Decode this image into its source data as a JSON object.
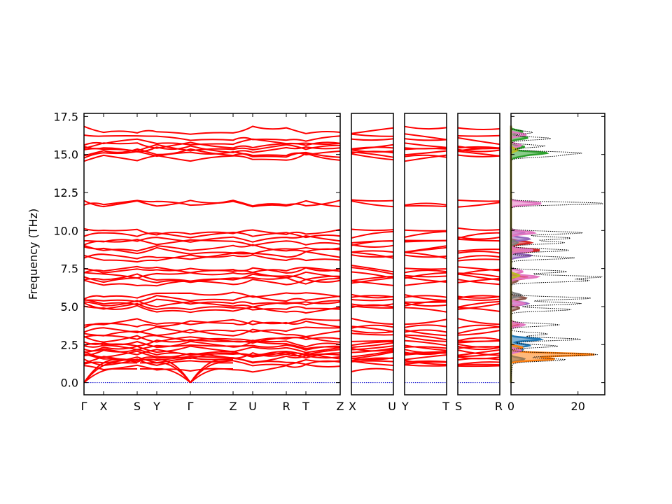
{
  "chart_data": {
    "type": "line",
    "title": "",
    "ylabel": "Frequency (THz)",
    "ylim": [
      -0.8,
      17.7
    ],
    "y_ticks": [
      "0.0",
      "2.5",
      "5.0",
      "7.5",
      "10.0",
      "12.5",
      "15.0",
      "17.5"
    ],
    "y_tick_values": [
      0.0,
      2.5,
      5.0,
      7.5,
      10.0,
      12.5,
      15.0,
      17.5
    ],
    "grid": false,
    "legend": "none",
    "colors": {
      "bands": "#ff0000",
      "zero_line": "#0000cc",
      "dos_total": "#000000"
    },
    "band_panels": [
      {
        "labels": [
          "Γ",
          "X",
          "S",
          "Y",
          "Γ",
          "Z",
          "U",
          "R",
          "T",
          "Z"
        ]
      },
      {
        "labels": [
          "X",
          "U"
        ]
      },
      {
        "labels": [
          "Y",
          "T"
        ]
      },
      {
        "labels": [
          "S",
          "R"
        ]
      }
    ],
    "band_levels_thz": [
      0.0,
      0.95,
      1.3,
      1.45,
      1.55,
      1.7,
      1.85,
      1.95,
      2.05,
      2.15,
      2.3,
      2.45,
      2.6,
      2.85,
      3.0,
      3.25,
      3.5,
      3.8,
      4.0,
      4.8,
      5.0,
      5.15,
      5.3,
      5.55,
      5.75,
      6.55,
      6.75,
      6.9,
      7.05,
      7.3,
      7.45,
      8.2,
      8.35,
      8.7,
      8.85,
      9.2,
      9.45,
      9.75,
      9.9,
      11.75,
      11.8,
      14.8,
      15.0,
      15.1,
      15.3,
      15.5,
      15.6,
      15.85,
      16.1,
      16.6
    ],
    "dos": {
      "xlabel_ticks": [
        "0",
        "20"
      ],
      "x_tick_values": [
        0,
        20
      ],
      "xlim": [
        0,
        28
      ],
      "total_peaks": [
        {
          "f": 1.5,
          "v": 16.5
        },
        {
          "f": 1.85,
          "v": 26.0
        },
        {
          "f": 2.4,
          "v": 14.0
        },
        {
          "f": 2.85,
          "v": 21.0
        },
        {
          "f": 3.2,
          "v": 11.0
        },
        {
          "f": 3.8,
          "v": 14.5
        },
        {
          "f": 4.8,
          "v": 18.0
        },
        {
          "f": 5.2,
          "v": 21.0
        },
        {
          "f": 5.55,
          "v": 24.0
        },
        {
          "f": 6.7,
          "v": 23.0
        },
        {
          "f": 6.95,
          "v": 27.0
        },
        {
          "f": 7.3,
          "v": 17.0
        },
        {
          "f": 8.2,
          "v": 19.0
        },
        {
          "f": 8.7,
          "v": 17.5
        },
        {
          "f": 9.2,
          "v": 16.0
        },
        {
          "f": 9.5,
          "v": 18.0
        },
        {
          "f": 9.85,
          "v": 21.5
        },
        {
          "f": 11.78,
          "v": 28.0
        },
        {
          "f": 14.9,
          "v": 12.0
        },
        {
          "f": 15.1,
          "v": 20.0
        },
        {
          "f": 15.55,
          "v": 10.0
        },
        {
          "f": 16.05,
          "v": 12.0
        },
        {
          "f": 16.45,
          "v": 6.5
        }
      ],
      "projections": [
        {
          "color": "#1f77b4",
          "peaks": [
            {
              "f": 2.85,
              "v": 9.0
            },
            {
              "f": 2.45,
              "v": 5.5
            },
            {
              "f": 2.15,
              "v": 3.5
            },
            {
              "f": 1.55,
              "v": 4.0
            }
          ]
        },
        {
          "color": "#ff7f0e",
          "peaks": [
            {
              "f": 1.85,
              "v": 25.0
            },
            {
              "f": 1.55,
              "v": 13.0
            },
            {
              "f": 2.3,
              "v": 3.5
            }
          ]
        },
        {
          "color": "#2ca02c",
          "peaks": [
            {
              "f": 15.1,
              "v": 10.5
            },
            {
              "f": 15.5,
              "v": 4.0
            },
            {
              "f": 16.1,
              "v": 5.0
            },
            {
              "f": 16.5,
              "v": 3.5
            },
            {
              "f": 14.9,
              "v": 3.0
            }
          ]
        },
        {
          "color": "#d62728",
          "peaks": [
            {
              "f": 8.7,
              "v": 8.5
            },
            {
              "f": 9.2,
              "v": 6.0
            },
            {
              "f": 3.85,
              "v": 2.5
            },
            {
              "f": 6.9,
              "v": 5.0
            }
          ]
        },
        {
          "color": "#9467bd",
          "peaks": [
            {
              "f": 9.45,
              "v": 5.5
            },
            {
              "f": 8.35,
              "v": 6.0
            },
            {
              "f": 5.2,
              "v": 5.0
            },
            {
              "f": 9.85,
              "v": 4.0
            }
          ]
        },
        {
          "color": "#8c564b",
          "peaks": [
            {
              "f": 5.55,
              "v": 4.5
            },
            {
              "f": 4.9,
              "v": 2.5
            },
            {
              "f": 6.7,
              "v": 2.0
            }
          ]
        },
        {
          "color": "#e377c2",
          "peaks": [
            {
              "f": 11.78,
              "v": 9.0
            },
            {
              "f": 6.95,
              "v": 8.0
            },
            {
              "f": 7.3,
              "v": 3.5
            },
            {
              "f": 8.7,
              "v": 6.5
            },
            {
              "f": 9.85,
              "v": 7.0
            },
            {
              "f": 5.2,
              "v": 4.0
            },
            {
              "f": 3.8,
              "v": 4.0
            },
            {
              "f": 2.1,
              "v": 3.0
            },
            {
              "f": 16.3,
              "v": 4.5
            },
            {
              "f": 15.6,
              "v": 3.0
            }
          ]
        },
        {
          "color": "#7f7f7f",
          "peaks": [
            {
              "f": 5.75,
              "v": 3.0
            },
            {
              "f": 9.2,
              "v": 2.0
            }
          ]
        },
        {
          "color": "#bcbd22",
          "peaks": [
            {
              "f": 7.05,
              "v": 2.5
            },
            {
              "f": 15.3,
              "v": 2.0
            }
          ]
        }
      ]
    }
  }
}
